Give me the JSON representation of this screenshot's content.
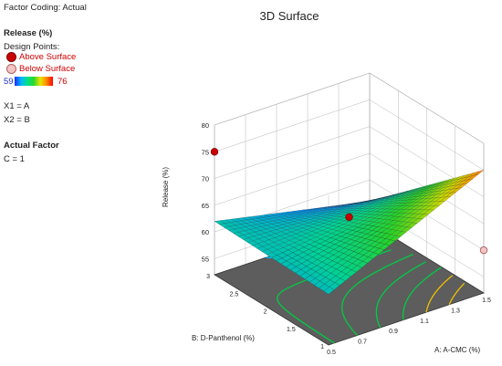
{
  "factor_coding": "Factor Coding: Actual",
  "response_title": "Release (%)",
  "design_points_label": "Design Points:",
  "legend": {
    "above": "Above Surface",
    "below": "Below Surface",
    "range_min": "59",
    "range_max": "76"
  },
  "mapping": {
    "x1": "X1 = A",
    "x2": "X2 = B"
  },
  "actual_factor_title": "Actual Factor",
  "actual_factor_value": "C = 1",
  "colors": {
    "above": "#cc0000",
    "below": "#f4c4c4",
    "legend_text": "#d00000"
  },
  "chart_data": {
    "type": "surface3d",
    "title": "3D Surface",
    "xlabel": "A: A-CMC (%)",
    "ylabel": "B: D-Panthenol (%)",
    "zlabel": "Release (%)",
    "x_ticks": [
      "0.5",
      "0.7",
      "0.9",
      "1.1",
      "1.3",
      "1.5"
    ],
    "y_ticks": [
      "1",
      "1.5",
      "2",
      "2.5",
      "3"
    ],
    "z_ticks": [
      "55",
      "60",
      "65",
      "70",
      "75",
      "80"
    ],
    "xlim": [
      0.5,
      1.5
    ],
    "ylim": [
      1,
      3
    ],
    "zlim": [
      52,
      80
    ],
    "surface": {
      "x": [
        0.5,
        1.5
      ],
      "y": [
        1,
        3
      ],
      "z": [
        [
          61.5,
          62.0
        ],
        [
          75.0,
          56.0
        ]
      ]
    },
    "design_points": [
      {
        "x": 1.0,
        "y": 2.0,
        "z": 64.5,
        "type": "above"
      },
      {
        "x": 0.5,
        "y": 3.0,
        "z": 75.0,
        "type": "above"
      },
      {
        "x": 1.5,
        "y": 1.0,
        "z": 60.0,
        "type": "below"
      }
    ],
    "contour_levels": [
      58,
      60,
      62,
      64,
      66,
      68,
      70,
      72
    ]
  }
}
